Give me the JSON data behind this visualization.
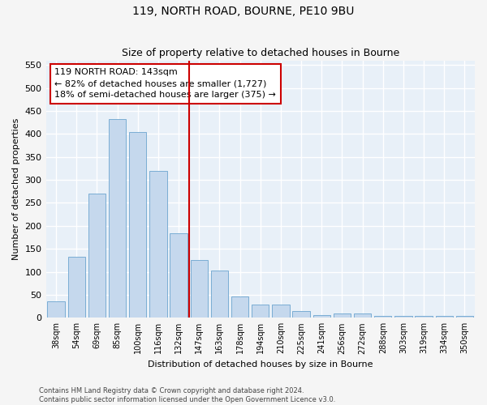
{
  "title": "119, NORTH ROAD, BOURNE, PE10 9BU",
  "subtitle": "Size of property relative to detached houses in Bourne",
  "xlabel": "Distribution of detached houses by size in Bourne",
  "ylabel": "Number of detached properties",
  "categories": [
    "38sqm",
    "54sqm",
    "69sqm",
    "85sqm",
    "100sqm",
    "116sqm",
    "132sqm",
    "147sqm",
    "163sqm",
    "178sqm",
    "194sqm",
    "210sqm",
    "225sqm",
    "241sqm",
    "256sqm",
    "272sqm",
    "288sqm",
    "303sqm",
    "319sqm",
    "334sqm",
    "350sqm"
  ],
  "values": [
    35,
    132,
    270,
    432,
    405,
    320,
    183,
    125,
    103,
    46,
    28,
    28,
    15,
    6,
    9,
    9,
    4,
    4,
    4,
    4,
    4
  ],
  "bar_color": "#c5d8ed",
  "bar_edge_color": "#7aadd4",
  "bg_color": "#e8f0f8",
  "grid_color": "#ffffff",
  "vline_x_idx": 7,
  "vline_color": "#cc0000",
  "annotation_text": "119 NORTH ROAD: 143sqm\n← 82% of detached houses are smaller (1,727)\n18% of semi-detached houses are larger (375) →",
  "annotation_box_color": "#cc0000",
  "ylim": [
    0,
    560
  ],
  "yticks": [
    0,
    50,
    100,
    150,
    200,
    250,
    300,
    350,
    400,
    450,
    500,
    550
  ],
  "footer_line1": "Contains HM Land Registry data © Crown copyright and database right 2024.",
  "footer_line2": "Contains public sector information licensed under the Open Government Licence v3.0.",
  "fig_bg": "#f5f5f5"
}
